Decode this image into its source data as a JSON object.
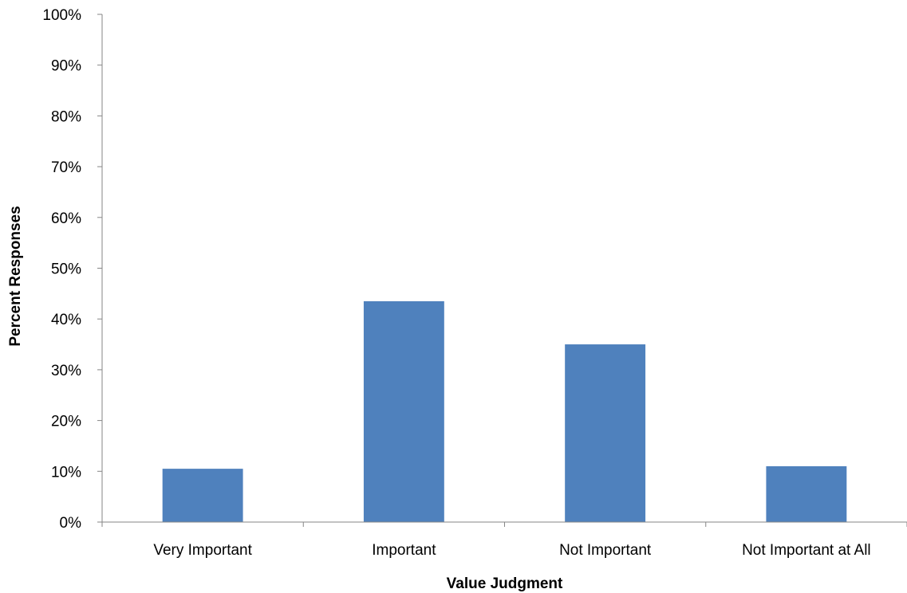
{
  "chart_data": {
    "type": "bar",
    "categories": [
      "Very Important",
      "Important",
      "Not Important",
      "Not Important at All"
    ],
    "values": [
      10.5,
      43.5,
      35.0,
      11.0
    ],
    "title": "",
    "xlabel": "Value Judgment",
    "ylabel": "Percent Responses",
    "ylim": [
      0,
      100
    ],
    "y_ticks": [
      0,
      10,
      20,
      30,
      40,
      50,
      60,
      70,
      80,
      90,
      100
    ],
    "y_tick_labels": [
      "0%",
      "10%",
      "20%",
      "30%",
      "40%",
      "50%",
      "60%",
      "70%",
      "80%",
      "90%",
      "100%"
    ],
    "grid": false,
    "legend": "none",
    "bar_color": "#4F81BD",
    "axis_color": "#868686"
  }
}
